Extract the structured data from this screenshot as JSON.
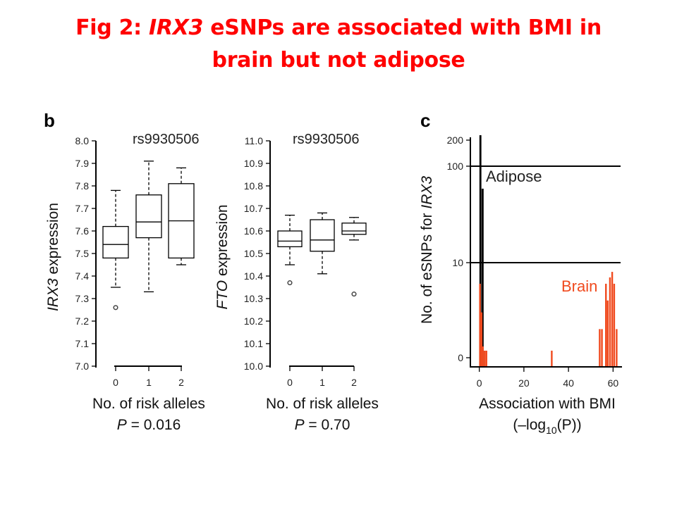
{
  "title": {
    "prefix": "Fig 2: ",
    "gene": "IRX3",
    "rest_line1": " eSNPs are associated with BMI in",
    "line2": "brain but not adipose"
  },
  "colors": {
    "title": "#ff0000",
    "brain": "#f04a1e",
    "adipose": "#000000"
  },
  "chart_data": [
    {
      "type": "box",
      "panel": "b",
      "subtitle": "rs9930506",
      "ylabel_gene": "IRX3",
      "ylabel_rest": " expression",
      "xlabel": "No. of risk alleles",
      "p_label": "P",
      "p_value": " = 0.016",
      "ylim": [
        7.0,
        8.0
      ],
      "yticks": [
        "7.0",
        "7.1",
        "7.2",
        "7.3",
        "7.4",
        "7.5",
        "7.6",
        "7.7",
        "7.8",
        "7.9",
        "8.0"
      ],
      "categories": [
        "0",
        "1",
        "2"
      ],
      "boxes": [
        {
          "whisker_low": 7.35,
          "q1": 7.48,
          "median": 7.54,
          "q3": 7.62,
          "whisker_high": 7.78,
          "outliers": [
            7.26
          ]
        },
        {
          "whisker_low": 7.33,
          "q1": 7.57,
          "median": 7.64,
          "q3": 7.76,
          "whisker_high": 7.91,
          "outliers": []
        },
        {
          "whisker_low": 7.45,
          "q1": 7.48,
          "median": 7.645,
          "q3": 7.81,
          "whisker_high": 7.88,
          "outliers": []
        }
      ]
    },
    {
      "type": "box",
      "panel": "",
      "subtitle": "rs9930506",
      "ylabel_gene": "FTO",
      "ylabel_rest": " expression",
      "xlabel": "No. of risk alleles",
      "p_label": "P",
      "p_value": " = 0.70",
      "ylim": [
        10.0,
        11.0
      ],
      "yticks": [
        "10.0",
        "10.1",
        "10.2",
        "10.3",
        "10.4",
        "10.5",
        "10.6",
        "10.7",
        "10.8",
        "10.9",
        "11.0"
      ],
      "categories": [
        "0",
        "1",
        "2"
      ],
      "boxes": [
        {
          "whisker_low": 10.45,
          "q1": 10.53,
          "median": 10.555,
          "q3": 10.6,
          "whisker_high": 10.67,
          "outliers": [
            10.37
          ]
        },
        {
          "whisker_low": 10.41,
          "q1": 10.51,
          "median": 10.56,
          "q3": 10.65,
          "whisker_high": 10.68,
          "outliers": []
        },
        {
          "whisker_low": 10.56,
          "q1": 10.585,
          "median": 10.6,
          "q3": 10.635,
          "whisker_high": 10.66,
          "outliers": [
            10.32
          ]
        }
      ]
    },
    {
      "type": "bar",
      "panel": "c",
      "xlabel_line1": "Association with BMI",
      "xlabel_line2_prefix": "(–log",
      "xlabel_line2_sub": "10",
      "xlabel_line2_suffix": "(P))",
      "ylabel_prefix": "No. of eSNPs for ",
      "ylabel_gene": "IRX3",
      "xlim": [
        -4,
        64
      ],
      "xticks": [
        "0",
        "20",
        "40",
        "60"
      ],
      "yticks": [
        "0",
        "10",
        "100",
        "200"
      ],
      "y_scale": "log",
      "series": [
        {
          "name": "Adipose",
          "bars": [
            {
              "x": 0.5,
              "value": 220
            },
            {
              "x": 1.5,
              "value": 60
            }
          ]
        },
        {
          "name": "Brain",
          "bars": [
            {
              "x": 0.3,
              "value": 6
            },
            {
              "x": 1.0,
              "value": 3
            },
            {
              "x": 1.6,
              "value": 0.8
            },
            {
              "x": 2.4,
              "value": 0.5
            },
            {
              "x": 3.2,
              "value": 0.5
            },
            {
              "x": 32.5,
              "value": 0.5
            },
            {
              "x": 54.0,
              "value": 2
            },
            {
              "x": 55.0,
              "value": 2
            },
            {
              "x": 56.8,
              "value": 6
            },
            {
              "x": 57.6,
              "value": 4
            },
            {
              "x": 58.6,
              "value": 7
            },
            {
              "x": 59.6,
              "value": 8
            },
            {
              "x": 60.5,
              "value": 6
            },
            {
              "x": 61.6,
              "value": 2
            }
          ]
        }
      ]
    }
  ]
}
